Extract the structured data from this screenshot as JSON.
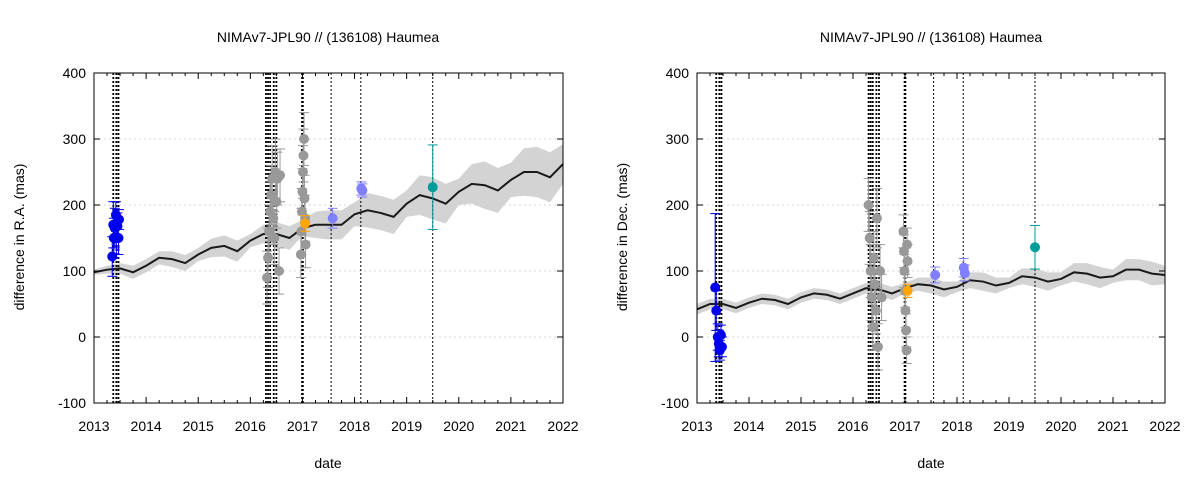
{
  "chart_data": [
    {
      "type": "scatter",
      "title": "NIMAv7-JPL90 // (136108) Haumea",
      "xlabel": "date",
      "ylabel": "difference in R.A. (mas)",
      "xlim": [
        2013,
        2022
      ],
      "ylim": [
        -100,
        400
      ],
      "xticks": [
        "2013",
        "2014",
        "2015",
        "2016",
        "2017",
        "2018",
        "2019",
        "2020",
        "2021",
        "2022"
      ],
      "yticks": [
        "-100",
        "0",
        "100",
        "200",
        "300",
        "400"
      ],
      "grid": true,
      "model": {
        "x": [
          2013.0,
          2013.25,
          2013.5,
          2013.75,
          2014.0,
          2014.25,
          2014.5,
          2014.75,
          2015.0,
          2015.25,
          2015.5,
          2015.75,
          2016.0,
          2016.25,
          2016.5,
          2016.75,
          2017.0,
          2017.25,
          2017.5,
          2017.75,
          2018.0,
          2018.25,
          2018.5,
          2018.75,
          2019.0,
          2019.25,
          2019.5,
          2019.75,
          2020.0,
          2020.25,
          2020.5,
          2020.75,
          2021.0,
          2021.25,
          2021.5,
          2021.75,
          2022.0
        ],
        "y": [
          98,
          102,
          104,
          98,
          108,
          120,
          118,
          112,
          125,
          135,
          138,
          130,
          146,
          156,
          156,
          150,
          165,
          170,
          170,
          170,
          186,
          192,
          188,
          182,
          202,
          215,
          210,
          202,
          220,
          232,
          230,
          222,
          238,
          250,
          250,
          242,
          262
        ],
        "band": [
          4,
          6,
          8,
          10,
          10,
          10,
          12,
          12,
          10,
          14,
          16,
          16,
          10,
          14,
          18,
          18,
          12,
          20,
          22,
          22,
          18,
          26,
          26,
          26,
          20,
          30,
          32,
          30,
          20,
          30,
          36,
          34,
          26,
          36,
          38,
          38,
          30
        ]
      },
      "epoch_lines": [
        {
          "x": 2013.37,
          "style": "thick"
        },
        {
          "x": 2013.43,
          "style": "thick"
        },
        {
          "x": 2013.47,
          "style": "thick"
        },
        {
          "x": 2016.3,
          "style": "thick"
        },
        {
          "x": 2016.34,
          "style": "thick"
        },
        {
          "x": 2016.38,
          "style": "thick"
        },
        {
          "x": 2016.45,
          "style": "thick"
        },
        {
          "x": 2016.5,
          "style": "thick"
        },
        {
          "x": 2017.0,
          "style": "heavy"
        },
        {
          "x": 2017.55,
          "style": "thin"
        },
        {
          "x": 2018.12,
          "style": "thin"
        },
        {
          "x": 2019.5,
          "style": "thin"
        }
      ],
      "series": [
        {
          "name": "set-blue",
          "color": "#0000ee",
          "points": [
            {
              "x": 2013.35,
              "y": 122,
              "err": 30
            },
            {
              "x": 2013.37,
              "y": 170,
              "err": 35
            },
            {
              "x": 2013.38,
              "y": 150,
              "err": 30
            },
            {
              "x": 2013.4,
              "y": 165,
              "err": 30
            },
            {
              "x": 2013.42,
              "y": 185,
              "err": 20
            },
            {
              "x": 2013.43,
              "y": 150,
              "err": 25
            },
            {
              "x": 2013.45,
              "y": 168,
              "err": 20
            },
            {
              "x": 2013.47,
              "y": 150,
              "err": 25
            },
            {
              "x": 2013.48,
              "y": 178,
              "err": 15
            }
          ]
        },
        {
          "name": "set-grey-2016",
          "color": "#999999",
          "points": [
            {
              "x": 2016.32,
              "y": 90,
              "err": 40
            },
            {
              "x": 2016.34,
              "y": 120,
              "err": 45
            },
            {
              "x": 2016.36,
              "y": 160,
              "err": 40
            },
            {
              "x": 2016.38,
              "y": 190,
              "err": 45
            },
            {
              "x": 2016.4,
              "y": 215,
              "err": 45
            },
            {
              "x": 2016.42,
              "y": 240,
              "err": 50
            },
            {
              "x": 2016.44,
              "y": 180,
              "err": 40
            },
            {
              "x": 2016.46,
              "y": 150,
              "err": 40
            },
            {
              "x": 2016.48,
              "y": 250,
              "err": 50
            },
            {
              "x": 2016.5,
              "y": 205,
              "err": 40
            },
            {
              "x": 2016.52,
              "y": 240,
              "err": 40
            },
            {
              "x": 2016.55,
              "y": 100,
              "err": 35
            },
            {
              "x": 2016.57,
              "y": 245,
              "err": 40
            }
          ]
        },
        {
          "name": "set-grey-2017",
          "color": "#999999",
          "points": [
            {
              "x": 2016.97,
              "y": 125,
              "err": 35
            },
            {
              "x": 2016.98,
              "y": 160,
              "err": 35
            },
            {
              "x": 2016.99,
              "y": 190,
              "err": 35
            },
            {
              "x": 2017.0,
              "y": 220,
              "err": 35
            },
            {
              "x": 2017.01,
              "y": 250,
              "err": 40
            },
            {
              "x": 2017.02,
              "y": 275,
              "err": 40
            },
            {
              "x": 2017.03,
              "y": 300,
              "err": 40
            },
            {
              "x": 2017.04,
              "y": 210,
              "err": 35
            },
            {
              "x": 2017.05,
              "y": 180,
              "err": 35
            },
            {
              "x": 2017.06,
              "y": 140,
              "err": 35
            }
          ]
        },
        {
          "name": "set-orange",
          "color": "#ffa500",
          "points": [
            {
              "x": 2017.05,
              "y": 172,
              "err": 12
            }
          ]
        },
        {
          "name": "set-lightblue",
          "color": "#7f7fff",
          "points": [
            {
              "x": 2017.58,
              "y": 180,
              "err": 15
            },
            {
              "x": 2018.13,
              "y": 225,
              "err": 10
            },
            {
              "x": 2018.15,
              "y": 222,
              "err": 10
            }
          ]
        },
        {
          "name": "set-teal",
          "color": "#009b9b",
          "points": [
            {
              "x": 2019.5,
              "y": 227,
              "err": 64
            }
          ]
        }
      ]
    },
    {
      "type": "scatter",
      "title": "NIMAv7-JPL90 // (136108) Haumea",
      "xlabel": "date",
      "ylabel": "difference in Dec. (mas)",
      "xlim": [
        2013,
        2022
      ],
      "ylim": [
        -100,
        400
      ],
      "xticks": [
        "2013",
        "2014",
        "2015",
        "2016",
        "2017",
        "2018",
        "2019",
        "2020",
        "2021",
        "2022"
      ],
      "yticks": [
        "-100",
        "0",
        "100",
        "200",
        "300",
        "400"
      ],
      "grid": true,
      "model": {
        "x": [
          2013.0,
          2013.25,
          2013.5,
          2013.75,
          2014.0,
          2014.25,
          2014.5,
          2014.75,
          2015.0,
          2015.25,
          2015.5,
          2015.75,
          2016.0,
          2016.25,
          2016.5,
          2016.75,
          2017.0,
          2017.25,
          2017.5,
          2017.75,
          2018.0,
          2018.25,
          2018.5,
          2018.75,
          2019.0,
          2019.25,
          2019.5,
          2019.75,
          2020.0,
          2020.25,
          2020.5,
          2020.75,
          2021.0,
          2021.25,
          2021.5,
          2021.75,
          2022.0
        ],
        "y": [
          42,
          50,
          50,
          44,
          52,
          58,
          56,
          50,
          60,
          66,
          64,
          58,
          66,
          74,
          72,
          66,
          74,
          80,
          78,
          72,
          76,
          86,
          84,
          78,
          82,
          92,
          90,
          84,
          88,
          98,
          96,
          90,
          92,
          102,
          102,
          96,
          94
        ],
        "band": [
          8,
          8,
          8,
          8,
          8,
          8,
          8,
          8,
          8,
          8,
          8,
          8,
          8,
          8,
          10,
          10,
          8,
          10,
          12,
          12,
          8,
          12,
          14,
          12,
          8,
          12,
          14,
          14,
          10,
          14,
          16,
          16,
          10,
          16,
          16,
          18,
          14
        ]
      },
      "epoch_lines": [
        {
          "x": 2013.37,
          "style": "thick"
        },
        {
          "x": 2013.43,
          "style": "thick"
        },
        {
          "x": 2013.47,
          "style": "thick"
        },
        {
          "x": 2016.3,
          "style": "thick"
        },
        {
          "x": 2016.34,
          "style": "thick"
        },
        {
          "x": 2016.38,
          "style": "thick"
        },
        {
          "x": 2016.45,
          "style": "thick"
        },
        {
          "x": 2016.5,
          "style": "thick"
        },
        {
          "x": 2017.0,
          "style": "heavy"
        },
        {
          "x": 2017.55,
          "style": "thin"
        },
        {
          "x": 2018.12,
          "style": "thin"
        },
        {
          "x": 2019.5,
          "style": "thin"
        }
      ],
      "series": [
        {
          "name": "set-blue",
          "color": "#0000ee",
          "points": [
            {
              "x": 2013.35,
              "y": 75,
              "err": 112
            },
            {
              "x": 2013.37,
              "y": 40,
              "err": 30
            },
            {
              "x": 2013.4,
              "y": 0,
              "err": 20
            },
            {
              "x": 2013.42,
              "y": -10,
              "err": 20
            },
            {
              "x": 2013.44,
              "y": -20,
              "err": 15
            },
            {
              "x": 2013.46,
              "y": 3,
              "err": 15
            },
            {
              "x": 2013.48,
              "y": -15,
              "err": 15
            }
          ]
        },
        {
          "name": "set-grey-2016",
          "color": "#999999",
          "points": [
            {
              "x": 2016.3,
              "y": 200,
              "err": 40
            },
            {
              "x": 2016.32,
              "y": 150,
              "err": 40
            },
            {
              "x": 2016.34,
              "y": 100,
              "err": 40
            },
            {
              "x": 2016.36,
              "y": 60,
              "err": 35
            },
            {
              "x": 2016.38,
              "y": 15,
              "err": 35
            },
            {
              "x": 2016.4,
              "y": 120,
              "err": 40
            },
            {
              "x": 2016.42,
              "y": 80,
              "err": 35
            },
            {
              "x": 2016.44,
              "y": 40,
              "err": 35
            },
            {
              "x": 2016.46,
              "y": 180,
              "err": 45
            },
            {
              "x": 2016.48,
              "y": -15,
              "err": 35
            },
            {
              "x": 2016.52,
              "y": 100,
              "err": 40
            },
            {
              "x": 2016.55,
              "y": 60,
              "err": 35
            }
          ]
        },
        {
          "name": "set-grey-2017",
          "color": "#999999",
          "points": [
            {
              "x": 2016.97,
              "y": 160,
              "err": 25
            },
            {
              "x": 2016.98,
              "y": 130,
              "err": 25
            },
            {
              "x": 2016.99,
              "y": 100,
              "err": 25
            },
            {
              "x": 2017.0,
              "y": 70,
              "err": 25
            },
            {
              "x": 2017.01,
              "y": 40,
              "err": 25
            },
            {
              "x": 2017.02,
              "y": 10,
              "err": 25
            },
            {
              "x": 2017.03,
              "y": -20,
              "err": 20
            },
            {
              "x": 2017.04,
              "y": 140,
              "err": 25
            },
            {
              "x": 2017.05,
              "y": 115,
              "err": 25
            }
          ]
        },
        {
          "name": "set-orange",
          "color": "#ffa500",
          "points": [
            {
              "x": 2017.05,
              "y": 70,
              "err": 10
            }
          ]
        },
        {
          "name": "set-lightblue",
          "color": "#7f7fff",
          "points": [
            {
              "x": 2017.58,
              "y": 94,
              "err": 12
            },
            {
              "x": 2018.13,
              "y": 105,
              "err": 14
            },
            {
              "x": 2018.15,
              "y": 97,
              "err": 12
            }
          ]
        },
        {
          "name": "set-teal",
          "color": "#009b9b",
          "points": [
            {
              "x": 2019.5,
              "y": 136,
              "err": 33
            }
          ]
        }
      ]
    }
  ]
}
